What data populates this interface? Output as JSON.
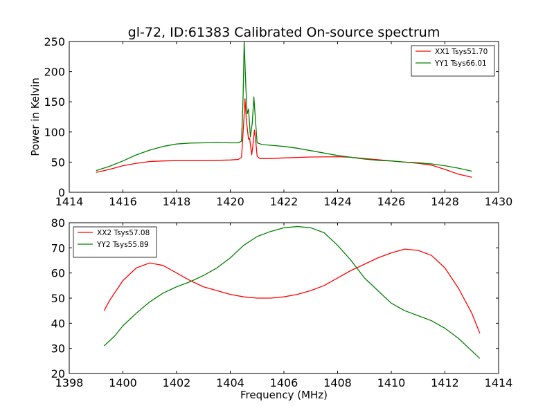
{
  "chart_data": [
    {
      "type": "line",
      "title": "gl-72, ID:61383 Calibrated On-source spectrum",
      "xlabel": "",
      "ylabel": "Power in Kelvin",
      "xlim": [
        1414,
        1430
      ],
      "ylim": [
        0,
        250
      ],
      "xticks": [
        1414,
        1416,
        1418,
        1420,
        1422,
        1424,
        1426,
        1428,
        1430
      ],
      "yticks": [
        0,
        50,
        100,
        150,
        200,
        250
      ],
      "legend_position": "top-right",
      "series": [
        {
          "name": "XX1 Tsys51.70",
          "color": "#ff0000",
          "points": [
            [
              1415,
              33
            ],
            [
              1415.5,
              38
            ],
            [
              1416,
              44
            ],
            [
              1416.5,
              48
            ],
            [
              1417,
              51
            ],
            [
              1417.5,
              52
            ],
            [
              1418,
              52.5
            ],
            [
              1419,
              52.5
            ],
            [
              1419.5,
              53
            ],
            [
              1420,
              53.5
            ],
            [
              1420.3,
              54.5
            ],
            [
              1420.42,
              58
            ],
            [
              1420.5,
              115
            ],
            [
              1420.55,
              155
            ],
            [
              1420.6,
              120
            ],
            [
              1420.68,
              88
            ],
            [
              1420.72,
              90
            ],
            [
              1420.8,
              62
            ],
            [
              1420.85,
              80
            ],
            [
              1420.9,
              103
            ],
            [
              1420.95,
              85
            ],
            [
              1421,
              60
            ],
            [
              1421.1,
              56
            ],
            [
              1421.5,
              56
            ],
            [
              1422,
              57
            ],
            [
              1423,
              58.5
            ],
            [
              1424,
              59
            ],
            [
              1424.5,
              58
            ],
            [
              1425,
              56
            ],
            [
              1425.5,
              54
            ],
            [
              1426,
              52
            ],
            [
              1426.5,
              50
            ],
            [
              1427,
              48
            ],
            [
              1427.5,
              45
            ],
            [
              1428,
              38
            ],
            [
              1428.5,
              30
            ],
            [
              1429,
              25
            ]
          ]
        },
        {
          "name": "YY1 Tsys66.01",
          "color": "#008000",
          "points": [
            [
              1415,
              36
            ],
            [
              1415.5,
              43
            ],
            [
              1416,
              52
            ],
            [
              1416.5,
              62
            ],
            [
              1417,
              70
            ],
            [
              1417.5,
              76
            ],
            [
              1418,
              80
            ],
            [
              1418.5,
              81.5
            ],
            [
              1419,
              82
            ],
            [
              1419.5,
              82.5
            ],
            [
              1420,
              82
            ],
            [
              1420.3,
              82
            ],
            [
              1420.42,
              85
            ],
            [
              1420.48,
              160
            ],
            [
              1420.52,
              250
            ],
            [
              1420.58,
              175
            ],
            [
              1420.63,
              130
            ],
            [
              1420.68,
              138
            ],
            [
              1420.75,
              92
            ],
            [
              1420.82,
              115
            ],
            [
              1420.88,
              158
            ],
            [
              1420.94,
              120
            ],
            [
              1421,
              82
            ],
            [
              1421.2,
              79
            ],
            [
              1421.5,
              78
            ],
            [
              1422,
              76
            ],
            [
              1422.5,
              73
            ],
            [
              1423,
              69
            ],
            [
              1423.5,
              65
            ],
            [
              1424,
              61
            ],
            [
              1424.5,
              58
            ],
            [
              1425,
              55
            ],
            [
              1425.5,
              53
            ],
            [
              1426,
              52
            ],
            [
              1426.5,
              50
            ],
            [
              1427,
              49
            ],
            [
              1427.5,
              47
            ],
            [
              1428,
              44
            ],
            [
              1428.5,
              40
            ],
            [
              1429,
              35
            ]
          ]
        }
      ]
    },
    {
      "type": "line",
      "title": "",
      "xlabel": "Frequency (MHz)",
      "ylabel": "",
      "xlim": [
        1398,
        1414
      ],
      "ylim": [
        20,
        80
      ],
      "xticks": [
        1398,
        1400,
        1402,
        1404,
        1406,
        1408,
        1410,
        1412,
        1414
      ],
      "yticks": [
        20,
        30,
        40,
        50,
        60,
        70,
        80
      ],
      "legend_position": "top-left",
      "series": [
        {
          "name": "XX2 Tsys57.08",
          "color": "#ff0000",
          "points": [
            [
              1399.3,
              45
            ],
            [
              1399.5,
              49
            ],
            [
              1400,
              57
            ],
            [
              1400.5,
              62
            ],
            [
              1401,
              64
            ],
            [
              1401.5,
              63
            ],
            [
              1402,
              60
            ],
            [
              1402.5,
              57
            ],
            [
              1403,
              54.5
            ],
            [
              1403.5,
              53
            ],
            [
              1404,
              51.5
            ],
            [
              1404.5,
              50.5
            ],
            [
              1405,
              50
            ],
            [
              1405.5,
              50
            ],
            [
              1406,
              50.5
            ],
            [
              1406.5,
              51.5
            ],
            [
              1407,
              53
            ],
            [
              1407.5,
              55
            ],
            [
              1408,
              58
            ],
            [
              1408.5,
              61
            ],
            [
              1409,
              63.5
            ],
            [
              1409.5,
              66
            ],
            [
              1410,
              68
            ],
            [
              1410.5,
              69.5
            ],
            [
              1411,
              69
            ],
            [
              1411.5,
              67
            ],
            [
              1412,
              62
            ],
            [
              1412.5,
              54
            ],
            [
              1413,
              44
            ],
            [
              1413.3,
              36
            ]
          ]
        },
        {
          "name": "YY2 Tsys55.89",
          "color": "#008000",
          "points": [
            [
              1399.3,
              31
            ],
            [
              1399.7,
              35
            ],
            [
              1400,
              39
            ],
            [
              1400.5,
              44
            ],
            [
              1401,
              48.5
            ],
            [
              1401.5,
              52
            ],
            [
              1402,
              54.5
            ],
            [
              1402.5,
              56.5
            ],
            [
              1403,
              59
            ],
            [
              1403.5,
              62
            ],
            [
              1404,
              66
            ],
            [
              1404.5,
              71
            ],
            [
              1405,
              74.5
            ],
            [
              1405.5,
              76.5
            ],
            [
              1406,
              78
            ],
            [
              1406.5,
              78.5
            ],
            [
              1407,
              78
            ],
            [
              1407.5,
              76
            ],
            [
              1408,
              71
            ],
            [
              1408.5,
              65
            ],
            [
              1409,
              58
            ],
            [
              1409.5,
              53
            ],
            [
              1410,
              48
            ],
            [
              1410.5,
              45
            ],
            [
              1411,
              43
            ],
            [
              1411.5,
              41
            ],
            [
              1412,
              38
            ],
            [
              1412.5,
              34
            ],
            [
              1413,
              29
            ],
            [
              1413.3,
              26
            ]
          ]
        }
      ]
    }
  ]
}
